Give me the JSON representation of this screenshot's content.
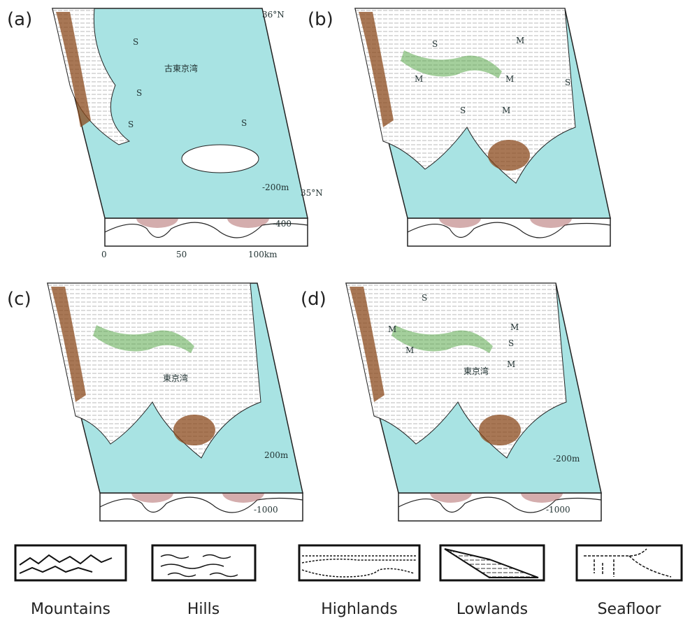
{
  "panels": [
    {
      "label": "(a)",
      "annotations": [
        "36°N",
        "S",
        "古東京湾",
        "S",
        "S",
        "S",
        "-200m",
        "35°N",
        "-400"
      ],
      "scale": [
        "0",
        "50",
        "100km"
      ]
    },
    {
      "label": "(b)",
      "annotations": [
        "S",
        "M",
        "M",
        "M",
        "S",
        "S",
        "M"
      ]
    },
    {
      "label": "(c)",
      "annotations": [
        "東京湾",
        "200m",
        "-1000"
      ]
    },
    {
      "label": "(d)",
      "annotations": [
        "S",
        "M",
        "M",
        "S",
        "M",
        "東京湾",
        "M",
        "-200m",
        "-1000"
      ]
    }
  ],
  "legend": [
    {
      "label": "Mountains"
    },
    {
      "label": "Hills"
    },
    {
      "label": "Highlands"
    },
    {
      "label": "Lowlands"
    },
    {
      "label": "Seafloor"
    }
  ]
}
